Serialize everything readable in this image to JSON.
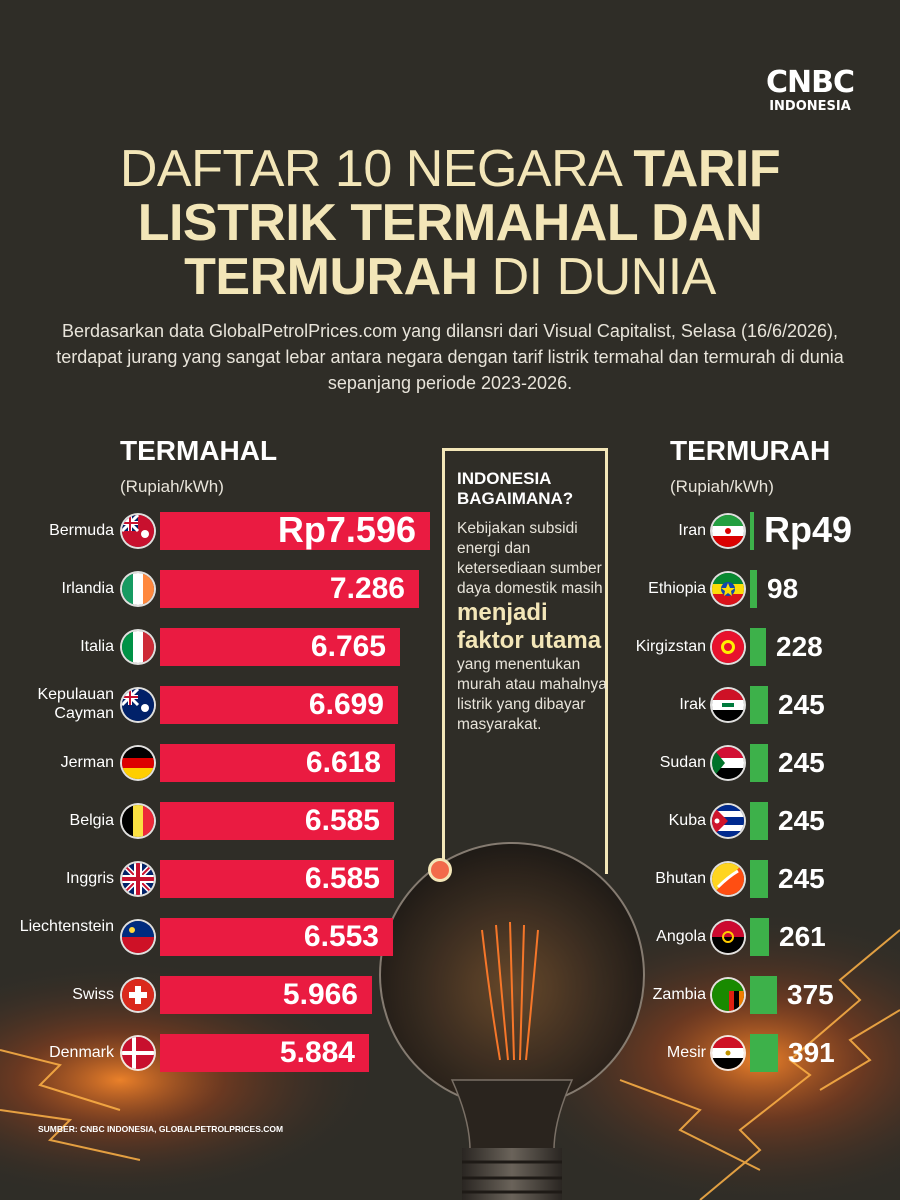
{
  "brand": {
    "line1": "CNBC",
    "line2": "INDONESIA"
  },
  "title": {
    "line1_light": "DAFTAR 10 NEGARA ",
    "line1_bold": "TARIF",
    "line2_bold": "LISTRIK TERMAHAL DAN",
    "line3_bold": "TERMURAH",
    "line3_light": " DI DUNIA"
  },
  "subtitle": "Berdasarkan data GlobalPetrolPrices.com yang dilansri dari Visual Capitalist, Selasa (16/6/2026), terdapat jurang yang sangat lebar antara negara dengan tarif listrik termahal dan termurah di dunia sepanjang periode 2023-2026.",
  "callout": {
    "title": "INDONESIA BAGAIMANA?",
    "body_pre": "Kebijakan subsidi energi dan ketersediaan sumber daya domestik masih",
    "body_emphasis": "menjadi faktor utama",
    "body_post": " yang menentukan murah atau mahalnya listrik yang dibayar masyarakat."
  },
  "source": "SUMBER: CNBC INDONESIA, GLOBALPETROLPRICES.COM",
  "colors": {
    "background": "#2f2d27",
    "expensive_bar": "#ea1b41",
    "cheap_bar": "#3db14a",
    "title": "#f3e6b8"
  },
  "chart_data": [
    {
      "type": "bar",
      "title": "TERMAHAL",
      "unit_label": "(Rupiah/kWh)",
      "categories": [
        "Bermuda",
        "Irlandia",
        "Italia",
        "Kepulauan Cayman",
        "Jerman",
        "Belgia",
        "Inggris",
        "Liechtenstein",
        "Swiss",
        "Denmark"
      ],
      "values": [
        7596,
        7286,
        6765,
        6699,
        6618,
        6585,
        6585,
        6553,
        5966,
        5884
      ],
      "value_labels": [
        "Rp7.596",
        "7.286",
        "6.765",
        "6.699",
        "6.618",
        "6.585",
        "6.585",
        "6.553",
        "5.966",
        "5.884"
      ],
      "flags": [
        "flag-bermuda-icon",
        "flag-ireland-icon",
        "flag-italy-icon",
        "flag-cayman-islands-icon",
        "flag-germany-icon",
        "flag-belgium-icon",
        "flag-uk-icon",
        "flag-liechtenstein-icon",
        "flag-switzerland-icon",
        "flag-denmark-icon"
      ]
    },
    {
      "type": "bar",
      "title": "TERMURAH",
      "unit_label": "(Rupiah/kWh)",
      "categories": [
        "Iran",
        "Ethiopia",
        "Kirgizstan",
        "Irak",
        "Sudan",
        "Kuba",
        "Bhutan",
        "Angola",
        "Zambia",
        "Mesir"
      ],
      "values": [
        49,
        98,
        228,
        245,
        245,
        245,
        245,
        261,
        375,
        391
      ],
      "value_labels": [
        "Rp49",
        "98",
        "228",
        "245",
        "245",
        "245",
        "245",
        "261",
        "375",
        "391"
      ],
      "flags": [
        "flag-iran-icon",
        "flag-ethiopia-icon",
        "flag-kyrgyzstan-icon",
        "flag-iraq-icon",
        "flag-sudan-icon",
        "flag-cuba-icon",
        "flag-bhutan-icon",
        "flag-angola-icon",
        "flag-zambia-icon",
        "flag-egypt-icon"
      ]
    }
  ]
}
